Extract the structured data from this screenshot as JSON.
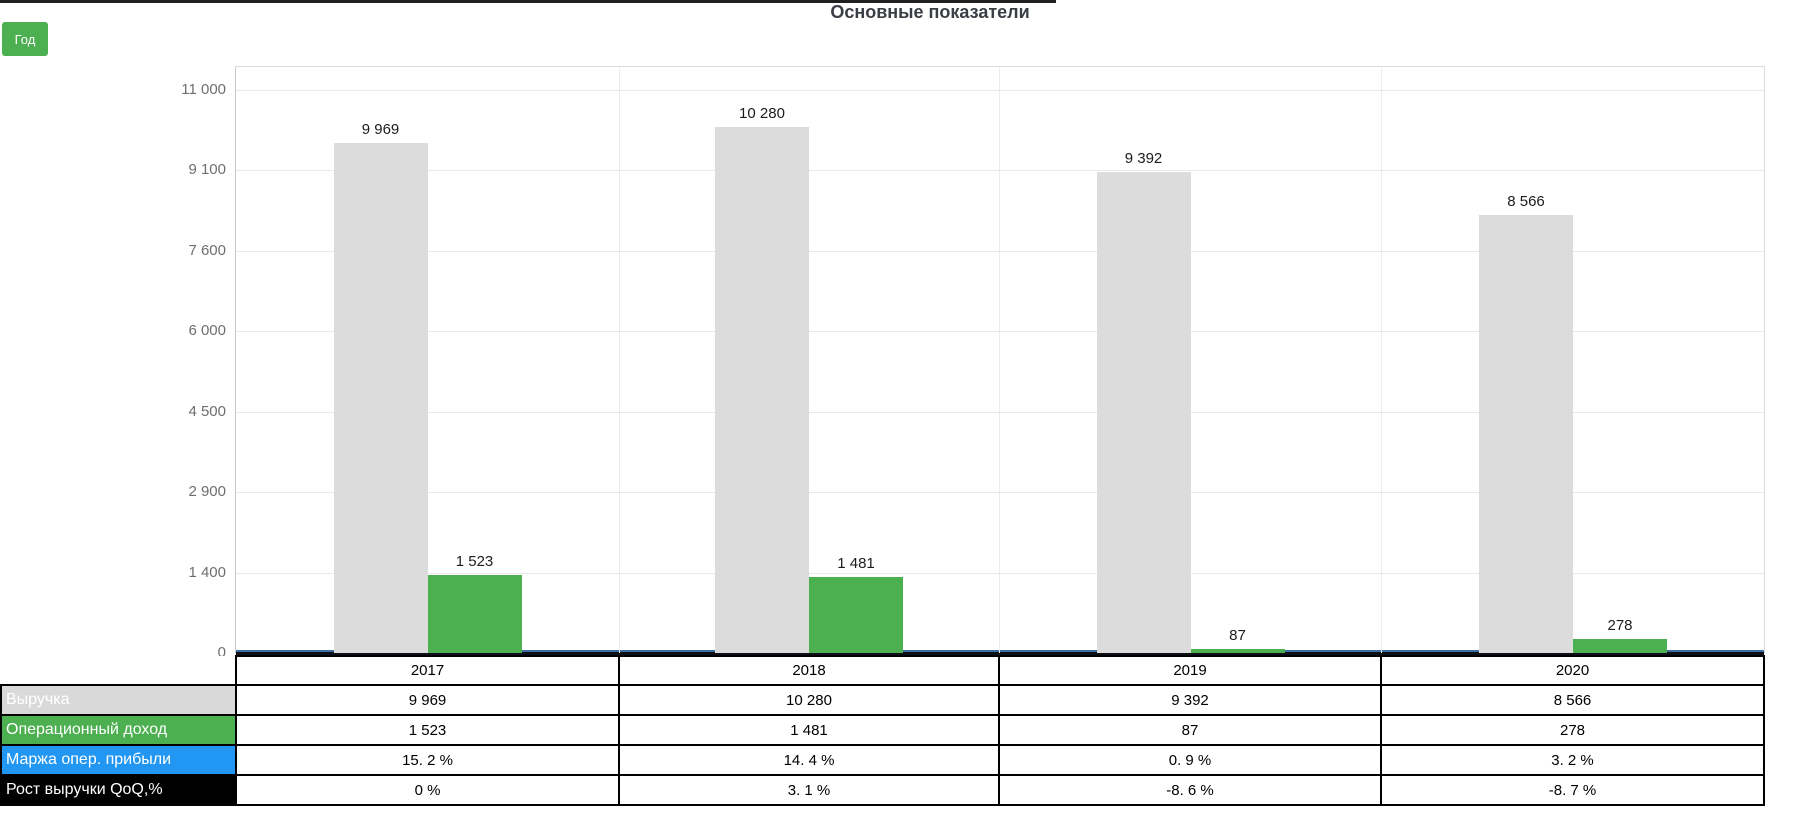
{
  "header": {
    "title": "Основные показатели",
    "period_button_label": "Год"
  },
  "chart_data": {
    "type": "bar",
    "title": "Основные показатели",
    "categories": [
      "2017",
      "2018",
      "2019",
      "2020"
    ],
    "series": [
      {
        "name": "Выручка",
        "kind": "bar",
        "color": "#dcdcdc",
        "values": [
          9969,
          10280,
          9392,
          8566
        ],
        "labels": [
          "9 969",
          "10 280",
          "9 392",
          "8 566"
        ]
      },
      {
        "name": "Операционный доход",
        "kind": "bar",
        "color": "#4caf50",
        "values": [
          1523,
          1481,
          87,
          278
        ],
        "labels": [
          "1 523",
          "1 481",
          "87",
          "278"
        ]
      },
      {
        "name": "Маржа опер. прибыли",
        "kind": "line",
        "color": "#2196f3",
        "values_percent": [
          15.2,
          14.4,
          0.9,
          3.2
        ]
      },
      {
        "name": "Рост выручки QoQ,%",
        "kind": "line",
        "color": "#000000",
        "values_percent": [
          0,
          3.1,
          -8.6,
          -8.7
        ]
      }
    ],
    "ylim": [
      0,
      11000
    ],
    "y_ticks": [
      "11 000",
      "9 100",
      "7 600",
      "6 000",
      "4 500",
      "2 900",
      "1 400",
      "0"
    ],
    "grid": true,
    "legend_position": "table-below"
  },
  "table": {
    "columns": [
      "2017",
      "2018",
      "2019",
      "2020"
    ],
    "row_headers": [
      {
        "label": "Выручка",
        "color": "#d9d9d9"
      },
      {
        "label": "Операционный доход",
        "color": "#4caf50"
      },
      {
        "label": "Маржа опер. прибыли",
        "color": "#2196f3"
      },
      {
        "label": "Рост выручки QoQ,%",
        "color": "#000000"
      }
    ],
    "rows": [
      [
        "9 969",
        "10 280",
        "9 392",
        "8 566"
      ],
      [
        "1 523",
        "1 481",
        "87",
        "278"
      ],
      [
        "15. 2 %",
        "14. 4 %",
        "0. 9 %",
        "3. 2 %"
      ],
      [
        "0 %",
        "3. 1 %",
        "-8. 6 %",
        "-8. 7 %"
      ]
    ]
  },
  "colors": {
    "accent_green": "#4caf50",
    "bar_gray": "#dcdcdc",
    "line_blue": "#2196f3",
    "line_black": "#000000",
    "title_text": "#3b3f45",
    "tick_text": "#6e6e6e"
  }
}
